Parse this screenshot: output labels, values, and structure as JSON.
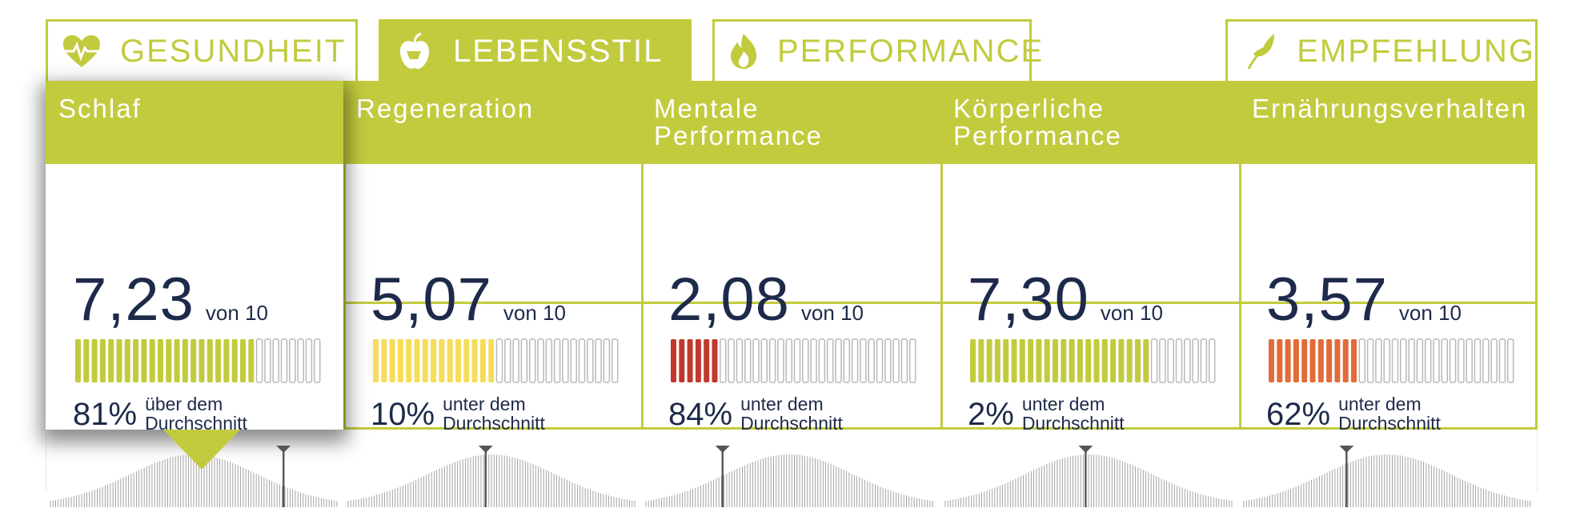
{
  "colors": {
    "accent": "#c2cb3e",
    "text": "#1d2a4a",
    "bar_empty": "#b9b9b9",
    "curve": "#9a9a9a",
    "marker": "#555555"
  },
  "tabs": [
    {
      "label": "GESUNDHEIT",
      "icon": "heart-pulse-icon",
      "active": false
    },
    {
      "label": "LEBENSSTIL",
      "icon": "apple-icon",
      "active": true
    },
    {
      "label": "PERFORMANCE",
      "icon": "flame-icon",
      "active": false
    },
    {
      "label": "EMPFEHLUNG",
      "icon": "leaf-icon",
      "active": false
    }
  ],
  "unit_label": "von 10",
  "metrics": [
    {
      "title": "Schlaf",
      "score": "7,23",
      "score_value": 7.23,
      "bar_color": "#c2cb3e",
      "percent": "81%",
      "comparison_line1": "über dem",
      "comparison_line2": "Durchschnitt",
      "percentile": 0.81,
      "selected": true
    },
    {
      "title": "Regeneration",
      "score": "5,07",
      "score_value": 5.07,
      "bar_color": "#f6dc5a",
      "percent": "10%",
      "comparison_line1": "unter dem",
      "comparison_line2": "Durchschnitt",
      "percentile": 0.48,
      "selected": false
    },
    {
      "title": "Mentale Performance",
      "score": "2,08",
      "score_value": 2.08,
      "bar_color": "#c0392b",
      "percent": "84%",
      "comparison_line1": "unter dem",
      "comparison_line2": "Durchschnitt",
      "percentile": 0.27,
      "selected": false
    },
    {
      "title": "Körperliche Performance",
      "score": "7,30",
      "score_value": 7.3,
      "bar_color": "#c2cb3e",
      "percent": "2%",
      "comparison_line1": "unter dem",
      "comparison_line2": "Durchschnitt",
      "percentile": 0.49,
      "selected": false
    },
    {
      "title": "Ernährungsverhalten",
      "score": "3,57",
      "score_value": 3.57,
      "bar_color": "#e26b3a",
      "percent": "62%",
      "comparison_line1": "unter dem",
      "comparison_line2": "Durchschnitt",
      "percentile": 0.36,
      "selected": false
    }
  ]
}
